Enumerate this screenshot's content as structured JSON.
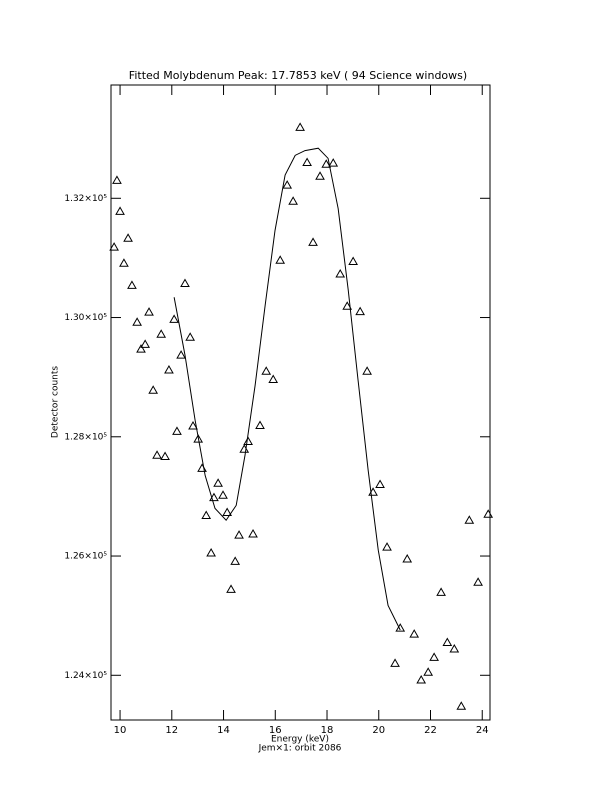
{
  "chart_data": {
    "type": "scatter",
    "title": "Fitted Molybdenum Peak:      17.7853 keV (      94 Science windows)",
    "xlabel": "Energy (keV)",
    "footnote": "Jem×1: orbit 2086",
    "ylabel": "Detector counts",
    "marker": "triangle",
    "color": "#000000",
    "xlim": [
      9.65,
      24.3
    ],
    "ylim": [
      123250,
      133900
    ],
    "xticks": [
      10,
      12,
      14,
      16,
      18,
      20,
      22,
      24
    ],
    "yticks": [
      {
        "value": 124000,
        "label": "1.24×10⁵"
      },
      {
        "value": 126000,
        "label": "1.26×10⁵"
      },
      {
        "value": 128000,
        "label": "1.28×10⁵"
      },
      {
        "value": 130000,
        "label": "1.30×10⁵"
      },
      {
        "value": 132000,
        "label": "1.32×10⁵"
      }
    ],
    "x": [
      9.77,
      9.88,
      10.0,
      10.15,
      10.31,
      10.46,
      10.66,
      10.81,
      10.97,
      11.12,
      11.28,
      11.43,
      11.59,
      11.74,
      11.89,
      12.09,
      12.2,
      12.36,
      12.51,
      12.71,
      12.82,
      13.02,
      13.17,
      13.33,
      13.52,
      13.63,
      13.79,
      13.98,
      14.14,
      14.29,
      14.45,
      14.6,
      14.8,
      14.95,
      15.14,
      15.41,
      15.65,
      15.92,
      16.19,
      16.46,
      16.69,
      16.96,
      17.23,
      17.46,
      17.73,
      17.97,
      18.24,
      18.51,
      18.78,
      19.01,
      19.28,
      19.55,
      19.78,
      20.05,
      20.32,
      20.63,
      20.83,
      21.1,
      21.37,
      21.64,
      21.91,
      22.14,
      22.41,
      22.65,
      22.92,
      23.19,
      23.5,
      23.84,
      24.23
    ],
    "values": [
      131180,
      132300,
      131780,
      130910,
      131330,
      130540,
      129920,
      129470,
      129550,
      130090,
      128780,
      127690,
      129720,
      127670,
      129120,
      129970,
      128090,
      129370,
      130570,
      129670,
      128180,
      127960,
      127470,
      126680,
      126050,
      126980,
      127220,
      127020,
      126730,
      125440,
      125910,
      126350,
      127790,
      127920,
      126370,
      128190,
      129100,
      128960,
      130960,
      132220,
      131950,
      133190,
      132600,
      131260,
      132370,
      132570,
      132590,
      130730,
      130190,
      130940,
      130100,
      129100,
      127070,
      127200,
      126150,
      124200,
      124790,
      125950,
      124690,
      123920,
      124050,
      124300,
      125390,
      124550,
      124440,
      123480,
      126600,
      125560,
      126700
    ],
    "fit_x": [
      12.09,
      12.51,
      12.9,
      13.29,
      13.67,
      14.1,
      14.49,
      14.83,
      15.22,
      15.61,
      15.99,
      16.38,
      16.77,
      17.15,
      17.66,
      18.04,
      18.43,
      18.82,
      19.2,
      19.59,
      19.98,
      20.36,
      20.83
    ],
    "fit_values": [
      130340,
      129370,
      128280,
      127350,
      126800,
      126600,
      126850,
      127690,
      128860,
      130210,
      131460,
      132390,
      132720,
      132800,
      132840,
      132670,
      131830,
      130460,
      128950,
      127440,
      126100,
      125170,
      124760
    ]
  }
}
